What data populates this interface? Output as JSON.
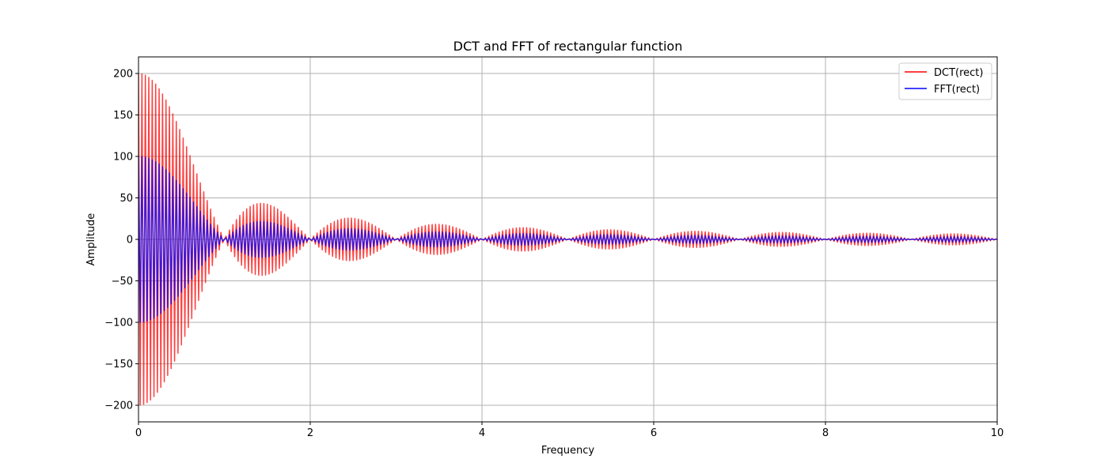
{
  "chart_data": {
    "type": "line",
    "title": "DCT and FFT of rectangular function",
    "xlabel": "Frequency",
    "ylabel": "Amplitude",
    "xlim": [
      0,
      10
    ],
    "ylim": [
      -220,
      220
    ],
    "xticks": [
      0,
      2,
      4,
      6,
      8,
      10
    ],
    "xtick_labels": [
      "0",
      "2",
      "4",
      "6",
      "8",
      "10"
    ],
    "yticks": [
      200,
      150,
      100,
      50,
      0,
      -50,
      -100,
      -150,
      -200
    ],
    "ytick_labels": [
      "200",
      "150",
      "100",
      "50",
      "0",
      "−50",
      "−100",
      "−150",
      "−200"
    ],
    "grid": true,
    "legend_position": "top-right",
    "samples_per_series": 501,
    "series": [
      {
        "name": "DCT(rect)",
        "color": "#ff0000",
        "opacity": 0.75,
        "peak_amplitude": 200,
        "envelope": "sinc",
        "envelope_zeros_at": [
          1,
          2,
          3,
          4,
          5,
          6,
          7,
          8,
          9
        ],
        "oscillating": true
      },
      {
        "name": "FFT(rect)",
        "color": "#0000ff",
        "opacity": 0.75,
        "peak_amplitude": 100,
        "envelope": "sinc",
        "envelope_zeros_at": [
          1,
          2,
          3,
          4,
          5,
          6,
          7,
          8,
          9
        ],
        "oscillating": true
      }
    ]
  }
}
